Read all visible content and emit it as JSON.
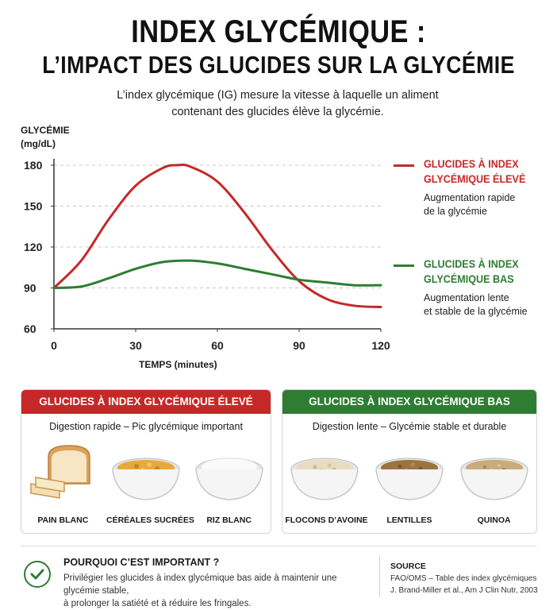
{
  "header": {
    "title_line1": "INDEX GLYCÉMIQUE :",
    "title_line2": "L’IMPACT DES GLUCIDES SUR LA GLYCÉMIE",
    "intro_line1": "L’index glycémique (IG) mesure la vitesse à laquelle un aliment",
    "intro_line2": "contenant des glucides élève la glycémie."
  },
  "chart_data": {
    "type": "line",
    "ylabel_line1": "GLYCÉMIE",
    "ylabel_line2": "(mg/dL)",
    "xlabel": "TEMPS (minutes)",
    "xlim": [
      0,
      120
    ],
    "ylim": [
      60,
      180
    ],
    "x_ticks": [
      0,
      30,
      60,
      90,
      120
    ],
    "y_ticks": [
      60,
      90,
      120,
      150,
      180
    ],
    "grid": "horizontal dashed",
    "series": [
      {
        "name": "GLUCIDES À INDEX GLYCÉMIQUE ÉLEVÉ",
        "color": "#c62828",
        "x": [
          0,
          10,
          20,
          30,
          40,
          45,
          50,
          60,
          70,
          80,
          90,
          100,
          110,
          120
        ],
        "y": [
          90,
          110,
          140,
          165,
          178,
          180,
          179,
          168,
          145,
          118,
          95,
          82,
          77,
          76
        ]
      },
      {
        "name": "GLUCIDES À INDEX GLYCÉMIQUE BAS",
        "color": "#2e7d32",
        "x": [
          0,
          10,
          20,
          30,
          40,
          50,
          60,
          70,
          80,
          90,
          100,
          110,
          120
        ],
        "y": [
          90,
          91,
          97,
          104,
          109,
          110,
          108,
          104,
          100,
          96,
          94,
          92,
          92
        ]
      }
    ]
  },
  "legend": {
    "high": {
      "title_line1": "GLUCIDES À INDEX",
      "title_line2": "GLYCÉMIQUE ÉLEVÉ",
      "desc_line1": "Augmentation rapide",
      "desc_line2": "de la glycémie",
      "color": "#c62828"
    },
    "low": {
      "title_line1": "GLUCIDES À INDEX",
      "title_line2": "GLYCÉMIQUE BAS",
      "desc_line1": "Augmentation lente",
      "desc_line2": "et stable de la glycémie",
      "color": "#2e7d32"
    }
  },
  "panels": {
    "high": {
      "header": "GLUCIDES À INDEX GLYCÉMIQUE ÉLEVÉ",
      "subtitle": "Digestion rapide – Pic glycémique important",
      "color": "#c62828",
      "foods": [
        {
          "label": "PAIN BLANC",
          "icon": "bread-icon"
        },
        {
          "label": "CÉRÉALES SUCRÉES",
          "icon": "cereal-bowl-icon"
        },
        {
          "label": "RIZ BLANC",
          "icon": "rice-bowl-icon"
        }
      ]
    },
    "low": {
      "header": "GLUCIDES À INDEX GLYCÉMIQUE BAS",
      "subtitle": "Digestion lente – Glycémie stable et durable",
      "color": "#2e7d32",
      "foods": [
        {
          "label": "FLOCONS D’AVOINE",
          "icon": "oats-bowl-icon"
        },
        {
          "label": "LENTILLES",
          "icon": "lentils-bowl-icon"
        },
        {
          "label": "QUINOA",
          "icon": "quinoa-bowl-icon"
        }
      ]
    }
  },
  "footer": {
    "why_title": "POURQUOI C’EST IMPORTANT ?",
    "why_line1": "Privilégier les glucides à index glycémique bas aide à maintenir une glycémie stable,",
    "why_line2": "à prolonger la satiété et à réduire les fringales.",
    "source_title": "SOURCE",
    "source_line1": "FAO/OMS – Table des index glycémiques",
    "source_line2": "J. Brand-Miller et al., Am J Clin Nutr, 2003"
  }
}
